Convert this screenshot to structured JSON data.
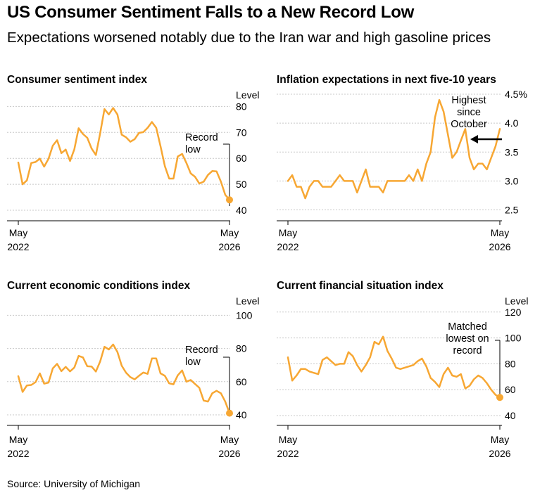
{
  "header": {
    "title": "US Consumer Sentiment Falls to a New Record Low",
    "subtitle": "Expectations worsened notably due to the Iran war and high gasoline prices"
  },
  "footer": {
    "source": "Source: University of Michigan"
  },
  "colors": {
    "series": "#f7a733",
    "grid": "#c8c8c8"
  },
  "chart_data": [
    {
      "type": "line",
      "title": "Consumer sentiment index",
      "ylabel": "Level",
      "ylim": [
        35,
        85
      ],
      "yticks": [
        40,
        50,
        60,
        70,
        80
      ],
      "xtick_labels": [
        {
          "line1": "May",
          "line2": "2022"
        },
        {
          "line1": "May",
          "line2": "2026"
        }
      ],
      "x_range": [
        "2022-05",
        "2026-05"
      ],
      "values": [
        58.4,
        50.0,
        51.5,
        58.2,
        58.6,
        59.9,
        56.8,
        59.8,
        64.9,
        67.0,
        62.0,
        63.4,
        59.0,
        63.5,
        71.6,
        69.4,
        67.9,
        63.8,
        61.3,
        69.7,
        79.0,
        76.9,
        79.4,
        76.9,
        69.1,
        68.1,
        66.4,
        67.4,
        69.8,
        70.1,
        71.8,
        74.0,
        71.8,
        64.7,
        57.0,
        52.2,
        52.2,
        60.7,
        61.7,
        58.2,
        54.2,
        52.9,
        50.3,
        51.0,
        53.6,
        55.1,
        55.0,
        51.0,
        46.0,
        44.0
      ],
      "annotations": [
        {
          "text": [
            "Record",
            "low"
          ]
        }
      ]
    },
    {
      "type": "line",
      "title": "Inflation expectations in next five-10 years",
      "ylabel": "",
      "ylim": [
        2.5,
        4.5
      ],
      "yticks": [
        2.5,
        3.0,
        3.5,
        4.0,
        4.5
      ],
      "ytick_labels": [
        "2.5",
        "3.0",
        "3.5",
        "4.0",
        "4.5%"
      ],
      "xtick_labels": [
        {
          "line1": "May",
          "line2": "2022"
        },
        {
          "line1": "May",
          "line2": "2026"
        }
      ],
      "x_range": [
        "2022-05",
        "2026-05"
      ],
      "values": [
        3.0,
        3.1,
        2.9,
        2.9,
        2.7,
        2.9,
        3.0,
        3.0,
        2.9,
        2.9,
        2.9,
        3.0,
        3.1,
        3.0,
        3.0,
        3.0,
        2.8,
        3.0,
        3.2,
        2.9,
        2.9,
        2.9,
        2.8,
        3.0,
        3.0,
        3.0,
        3.0,
        3.0,
        3.1,
        3.0,
        3.2,
        3.0,
        3.3,
        3.5,
        4.1,
        4.4,
        4.2,
        3.8,
        3.4,
        3.5,
        3.7,
        3.9,
        3.4,
        3.2,
        3.3,
        3.3,
        3.2,
        3.4,
        3.6,
        3.9
      ],
      "annotations": [
        {
          "text": [
            "Highest",
            "since",
            "October"
          ]
        }
      ]
    },
    {
      "type": "line",
      "title": "Current economic conditions index",
      "ylabel": "Level",
      "ylim": [
        35,
        105
      ],
      "yticks": [
        40,
        60,
        80,
        100
      ],
      "xtick_labels": [
        {
          "line1": "May",
          "line2": "2022"
        },
        {
          "line1": "May",
          "line2": "2026"
        }
      ],
      "x_range": [
        "2022-05",
        "2026-05"
      ],
      "values": [
        63.3,
        53.8,
        57.7,
        58.0,
        59.7,
        65.0,
        58.8,
        59.4,
        68.0,
        70.7,
        66.3,
        68.9,
        66.2,
        68.5,
        75.5,
        74.6,
        69.3,
        69.1,
        66.1,
        72.2,
        81.0,
        79.4,
        82.4,
        77.9,
        69.6,
        65.4,
        62.7,
        61.4,
        63.5,
        65.5,
        64.7,
        74.0,
        74.0,
        65.0,
        63.5,
        59.0,
        58.4,
        63.8,
        66.8,
        60.0,
        61.0,
        58.6,
        56.3,
        48.6,
        48.0,
        53.0,
        54.5,
        53.0,
        48.0,
        41.0
      ],
      "annotations": [
        {
          "text": [
            "Record",
            "low"
          ]
        }
      ]
    },
    {
      "type": "line",
      "title": "Current financial situation index",
      "ylabel": "Level",
      "ylim": [
        30,
        130
      ],
      "yticks": [
        40,
        60,
        80,
        100,
        120
      ],
      "xtick_labels": [
        {
          "line1": "May",
          "line2": "2022"
        },
        {
          "line1": "May",
          "line2": "2026"
        }
      ],
      "x_range": [
        "2022-05",
        "2026-05"
      ],
      "values": [
        85,
        67,
        71,
        76,
        76,
        74,
        73,
        72,
        83,
        85,
        82,
        79,
        80,
        80,
        89,
        86,
        79,
        74,
        79,
        85,
        97,
        95,
        101,
        90,
        84,
        77,
        76,
        77,
        78,
        79,
        82,
        84,
        78,
        69,
        66,
        62,
        72,
        77,
        71,
        70,
        72,
        61,
        63,
        68,
        71,
        69,
        65,
        60,
        56,
        54
      ],
      "annotations": [
        {
          "text": [
            "Matched",
            "lowest on",
            "record"
          ]
        }
      ]
    }
  ]
}
